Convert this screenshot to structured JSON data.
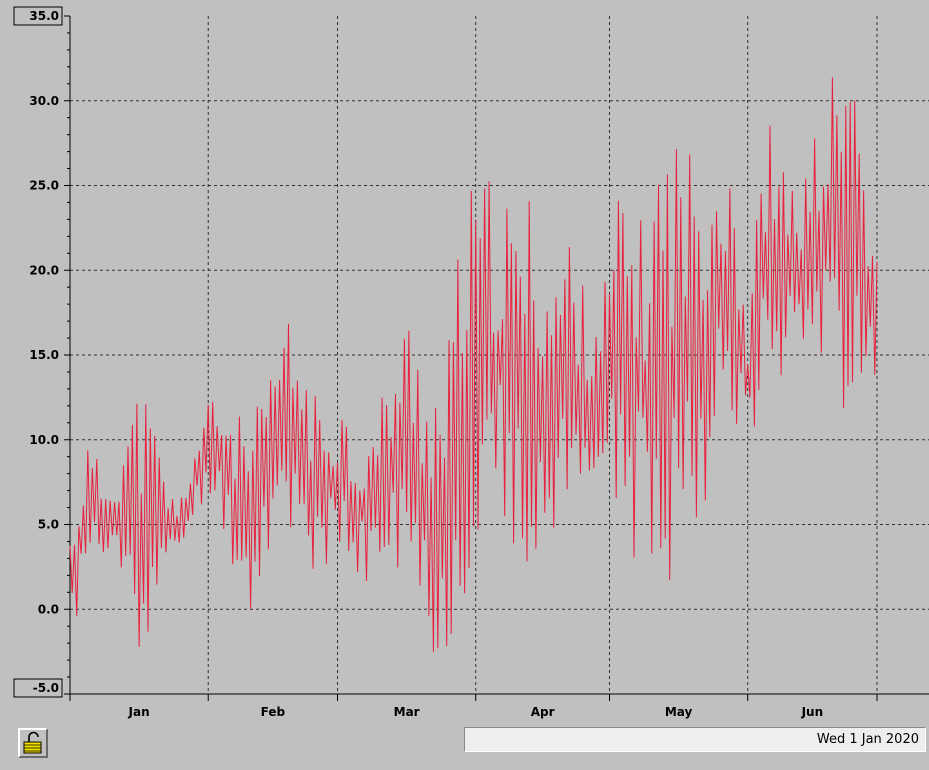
{
  "chart_data": {
    "type": "line",
    "xlabel": "",
    "ylabel": "",
    "x_tick_labels": [
      "Jan",
      "Feb",
      "Mar",
      "Apr",
      "May",
      "Jun"
    ],
    "y_tick_labels": [
      "-5.0",
      "0.0",
      "5.0",
      "10.0",
      "15.0",
      "20.0",
      "25.0",
      "30.0",
      "35.0"
    ],
    "ylim": [
      -5,
      35
    ],
    "xlim": [
      "2020-01-01",
      "2020-06-30"
    ],
    "grid": true,
    "line_color": "#e8213e",
    "series": [
      {
        "x": [
          "2020-01-01",
          "2020-01-05",
          "2020-01-09",
          "2020-01-13",
          "2020-01-17",
          "2020-01-21",
          "2020-01-25",
          "2020-01-29",
          "2020-02-02",
          "2020-02-06",
          "2020-02-10",
          "2020-02-14",
          "2020-02-18",
          "2020-02-22",
          "2020-02-26",
          "2020-03-01",
          "2020-03-05",
          "2020-03-09",
          "2020-03-13",
          "2020-03-17",
          "2020-03-21",
          "2020-03-25",
          "2020-03-29",
          "2020-04-02",
          "2020-04-06",
          "2020-04-10",
          "2020-04-14",
          "2020-04-18",
          "2020-04-22",
          "2020-04-26",
          "2020-04-30",
          "2020-05-04",
          "2020-05-08",
          "2020-05-12",
          "2020-05-16",
          "2020-05-20",
          "2020-05-24",
          "2020-05-28",
          "2020-06-01",
          "2020-06-05",
          "2020-06-09",
          "2020-06-13",
          "2020-06-17",
          "2020-06-21",
          "2020-06-25",
          "2020-06-29"
        ],
        "min": [
          -3,
          3,
          2,
          1,
          -3,
          0,
          3,
          5,
          7,
          3,
          -1,
          3,
          4,
          5,
          0,
          2,
          2,
          1,
          2,
          0,
          -2,
          -5,
          0,
          4,
          5,
          0,
          3,
          2,
          4,
          8,
          6,
          4,
          2,
          1,
          2,
          5,
          7,
          8,
          10,
          12,
          14,
          16,
          15,
          10,
          13,
          13
        ],
        "max": [
          5,
          10,
          8,
          11,
          14,
          10,
          6,
          10,
          13,
          12,
          11,
          13,
          18,
          15,
          12,
          14,
          10,
          11,
          15,
          18,
          15,
          14,
          24,
          26,
          25,
          24,
          25,
          21,
          23,
          18,
          20,
          26,
          23,
          28,
          29,
          27,
          29,
          30,
          17,
          30,
          26,
          25,
          29,
          33,
          34,
          21
        ]
      }
    ]
  },
  "status_bar": {
    "date_text": "Wed 1 Jan 2020"
  },
  "lock_button": {
    "icon": "padlock-open-icon"
  }
}
